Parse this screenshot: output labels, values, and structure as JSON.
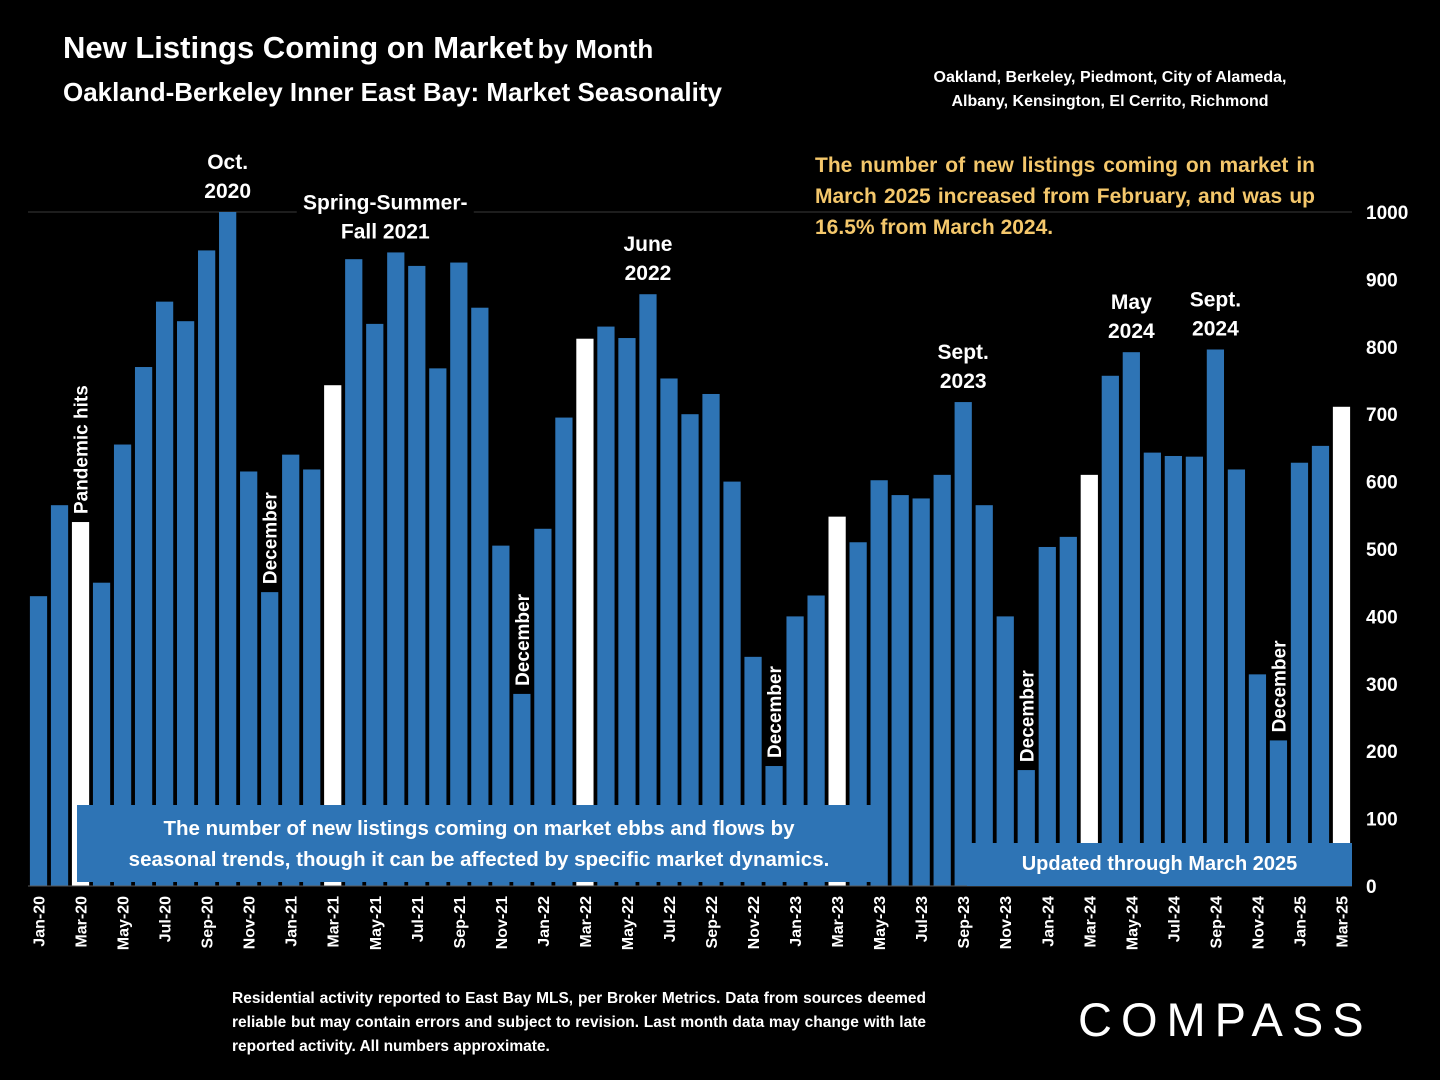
{
  "title": {
    "main": "New Listings Coming on Market",
    "suffix": "by Month",
    "subtitle": "Oakland-Berkeley Inner East Bay: Market Seasonality"
  },
  "cities": {
    "line1": "Oakland, Berkeley, Piedmont, City of Alameda,",
    "line2": "Albany, Kensington, El Cerrito, Richmond"
  },
  "note_top": "The number of new listings coming on market in March 2025 increased from February, and was up 16.5% from March 2024.",
  "box_left": {
    "line1": "The number of new listings coming on market ebbs and flows by",
    "line2": "seasonal trends, though it can be affected by specific market dynamics."
  },
  "box_right": "Updated through March 2025",
  "footnote": "Residential activity reported to East Bay MLS, per Broker Metrics. Data from sources deemed reliable but may contain errors and subject to revision. Last month data may change with late reported activity. All numbers approximate.",
  "logo": "COMPASS",
  "colors": {
    "bar": "#2e74b5",
    "highlight_bar": "#ffffff",
    "annotation_note": "#f4c76b",
    "background": "#000000"
  },
  "chart_data": {
    "type": "bar",
    "ylim": [
      0,
      1000
    ],
    "yticks": [
      0,
      100,
      200,
      300,
      400,
      500,
      600,
      700,
      800,
      900,
      1000
    ],
    "y_axis_position": "right",
    "grid": false,
    "categories": [
      "Jan-20",
      "Feb-20",
      "Mar-20",
      "Apr-20",
      "May-20",
      "Jun-20",
      "Jul-20",
      "Aug-20",
      "Sep-20",
      "Oct-20",
      "Nov-20",
      "Dec-20",
      "Jan-21",
      "Feb-21",
      "Mar-21",
      "Apr-21",
      "May-21",
      "Jun-21",
      "Jul-21",
      "Aug-21",
      "Sep-21",
      "Oct-21",
      "Nov-21",
      "Dec-21",
      "Jan-22",
      "Feb-22",
      "Mar-22",
      "Apr-22",
      "May-22",
      "Jun-22",
      "Jul-22",
      "Aug-22",
      "Sep-22",
      "Oct-22",
      "Nov-22",
      "Dec-22",
      "Jan-23",
      "Feb-23",
      "Mar-23",
      "Apr-23",
      "May-23",
      "Jun-23",
      "Jul-23",
      "Aug-23",
      "Sep-23",
      "Oct-23",
      "Nov-23",
      "Dec-23",
      "Jan-24",
      "Feb-24",
      "Mar-24",
      "Apr-24",
      "May-24",
      "Jun-24",
      "Jul-24",
      "Aug-24",
      "Sep-24",
      "Oct-24",
      "Nov-24",
      "Dec-24",
      "Jan-25",
      "Feb-25",
      "Mar-25"
    ],
    "tick_labels": [
      "Jan-20",
      "",
      "Mar-20",
      "",
      "May-20",
      "",
      "Jul-20",
      "",
      "Sep-20",
      "",
      "Nov-20",
      "",
      "Jan-21",
      "",
      "Mar-21",
      "",
      "May-21",
      "",
      "Jul-21",
      "",
      "Sep-21",
      "",
      "Nov-21",
      "",
      "Jan-22",
      "",
      "Mar-22",
      "",
      "May-22",
      "",
      "Jul-22",
      "",
      "Sep-22",
      "",
      "Nov-22",
      "",
      "Jan-23",
      "",
      "Mar-23",
      "",
      "May-23",
      "",
      "Jul-23",
      "",
      "Sep-23",
      "",
      "Nov-23",
      "",
      "Jan-24",
      "",
      "Mar-24",
      "",
      "May-24",
      "",
      "Jul-24",
      "",
      "Sep-24",
      "",
      "Nov-24",
      "",
      "Jan-25",
      "",
      "Mar-25"
    ],
    "values": [
      430,
      565,
      540,
      450,
      655,
      770,
      867,
      838,
      943,
      1000,
      615,
      436,
      640,
      618,
      743,
      930,
      834,
      940,
      920,
      768,
      925,
      858,
      505,
      285,
      530,
      695,
      812,
      830,
      813,
      878,
      753,
      700,
      730,
      600,
      340,
      178,
      400,
      431,
      548,
      510,
      602,
      580,
      575,
      610,
      718,
      565,
      400,
      172,
      503,
      518,
      610,
      757,
      792,
      643,
      638,
      637,
      796,
      618,
      314,
      216,
      628,
      653,
      711
    ],
    "highlight": [
      false,
      false,
      true,
      false,
      false,
      false,
      false,
      false,
      false,
      false,
      false,
      false,
      false,
      false,
      true,
      false,
      false,
      false,
      false,
      false,
      false,
      false,
      false,
      false,
      false,
      false,
      true,
      false,
      false,
      false,
      false,
      false,
      false,
      false,
      false,
      false,
      false,
      false,
      true,
      false,
      false,
      false,
      false,
      false,
      false,
      false,
      false,
      false,
      false,
      false,
      true,
      false,
      false,
      false,
      false,
      false,
      false,
      false,
      false,
      false,
      false,
      false,
      true
    ],
    "annotations": [
      {
        "index": 9,
        "text": [
          "Oct.",
          "2020"
        ],
        "orientation": "horizontal"
      },
      {
        "index": 16.5,
        "text": [
          "Spring-Summer-",
          "Fall  2021"
        ],
        "orientation": "horizontal"
      },
      {
        "index": 29,
        "text": [
          "June",
          "2022"
        ],
        "orientation": "horizontal"
      },
      {
        "index": 44,
        "text": [
          "Sept.",
          "2023"
        ],
        "orientation": "horizontal"
      },
      {
        "index": 52,
        "text": [
          "May",
          "2024"
        ],
        "orientation": "horizontal"
      },
      {
        "index": 56,
        "text": [
          "Sept.",
          "2024"
        ],
        "orientation": "horizontal"
      },
      {
        "index": 2,
        "text": [
          "Pandemic hits"
        ],
        "orientation": "vertical"
      },
      {
        "index": 11,
        "text": [
          "December"
        ],
        "orientation": "vertical"
      },
      {
        "index": 23,
        "text": [
          "December"
        ],
        "orientation": "vertical"
      },
      {
        "index": 35,
        "text": [
          "December"
        ],
        "orientation": "vertical"
      },
      {
        "index": 47,
        "text": [
          "December"
        ],
        "orientation": "vertical"
      },
      {
        "index": 59,
        "text": [
          "December"
        ],
        "orientation": "vertical"
      }
    ]
  }
}
